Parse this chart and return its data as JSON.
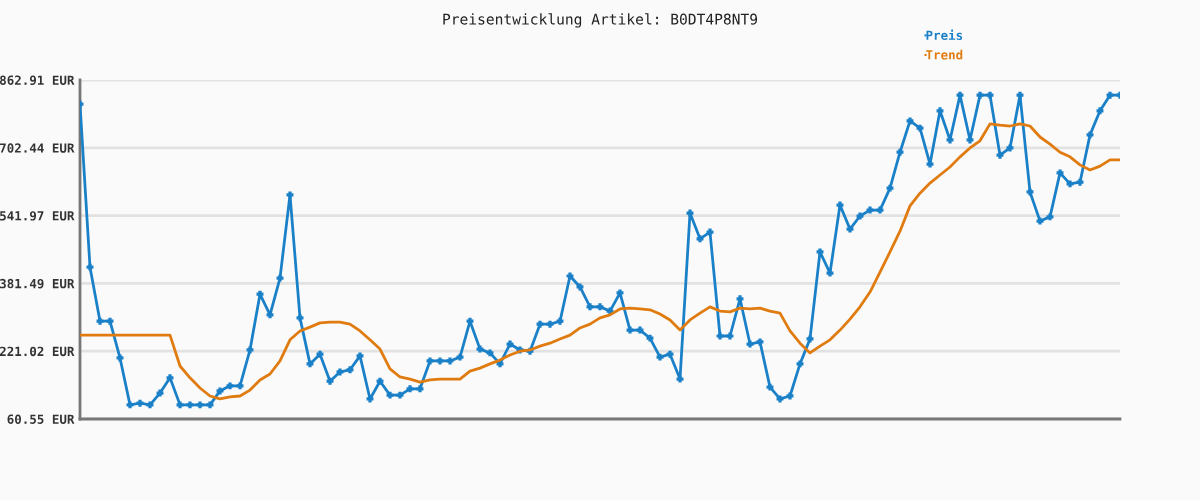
{
  "chart_data": {
    "type": "line",
    "title": "Preisentwicklung Artikel: B0DT4P8NT9",
    "categories": [
      null,
      null,
      null,
      null,
      null,
      null,
      null,
      null,
      null,
      null,
      null,
      null,
      null,
      null,
      null,
      null,
      null,
      null,
      null,
      null,
      null,
      null,
      null,
      null,
      null,
      null,
      null,
      null,
      null,
      null,
      null,
      null,
      null,
      null,
      null,
      null,
      null,
      null,
      null,
      null,
      null,
      null,
      null,
      null,
      null,
      null,
      null,
      null,
      null,
      null,
      null,
      null,
      null,
      null,
      null,
      null,
      null,
      null,
      null,
      null,
      null,
      null,
      null,
      null,
      null,
      null,
      null,
      null,
      null,
      null,
      null,
      null,
      null,
      null,
      null,
      null,
      null,
      null,
      null,
      null,
      null,
      null,
      null,
      null,
      null,
      null,
      null,
      null,
      null,
      null,
      null,
      null,
      null,
      null,
      null,
      null,
      null,
      null,
      null,
      null,
      null,
      null,
      null,
      null,
      null
    ],
    "series": [
      {
        "name": "Preis",
        "color": "#1a80c8",
        "marker": "cross",
        "values": [
          806,
          420,
          292,
          292,
          205,
          94,
          98,
          94,
          122,
          158,
          94,
          94,
          94,
          94,
          127,
          139,
          139,
          224,
          356,
          307,
          394,
          591,
          300,
          191,
          214,
          150,
          172,
          177,
          210,
          108,
          150,
          117,
          117,
          132,
          132,
          198,
          198,
          198,
          207,
          292,
          226,
          217,
          191,
          238,
          224,
          221,
          285,
          285,
          292,
          399,
          373,
          326,
          326,
          316,
          359,
          271,
          271,
          252,
          207,
          214,
          155,
          548,
          487,
          503,
          257,
          257,
          345,
          238,
          243,
          136,
          108,
          115,
          191,
          250,
          456,
          406,
          567,
          510,
          541,
          555,
          555,
          607,
          692,
          766,
          749,
          664,
          790,
          721,
          827,
          721,
          827,
          827,
          685,
          702,
          827,
          598,
          529,
          539,
          643,
          617,
          621,
          733,
          790,
          827,
          827
        ]
      },
      {
        "name": "Trend",
        "color": "#e07b10",
        "marker": "none",
        "values": [
          259,
          259,
          259,
          259,
          259,
          259,
          259,
          259,
          259,
          259,
          186,
          158,
          134,
          115,
          108,
          113,
          115,
          129,
          153,
          167,
          198,
          248,
          269,
          278,
          288,
          290,
          290,
          285,
          269,
          248,
          226,
          179,
          160,
          155,
          148,
          153,
          155,
          155,
          155,
          174,
          181,
          191,
          200,
          212,
          221,
          224,
          233,
          240,
          250,
          259,
          276,
          285,
          300,
          307,
          321,
          323,
          321,
          319,
          309,
          295,
          271,
          295,
          311,
          326,
          316,
          314,
          323,
          321,
          323,
          316,
          311,
          269,
          240,
          217,
          233,
          248,
          271,
          297,
          326,
          361,
          408,
          456,
          505,
          565,
          595,
          619,
          638,
          657,
          681,
          702,
          719,
          759,
          756,
          754,
          759,
          754,
          728,
          711,
          692,
          681,
          662,
          650,
          659,
          674,
          674
        ]
      }
    ],
    "ylim": [
      60.55,
      862.91
    ],
    "yticks": [
      {
        "value": 60.55,
        "label": "60.55 EUR"
      },
      {
        "value": 221.02,
        "label": "221.02 EUR"
      },
      {
        "value": 381.49,
        "label": "381.49 EUR"
      },
      {
        "value": 541.97,
        "label": "541.97 EUR"
      },
      {
        "value": 702.44,
        "label": "702.44 EUR"
      },
      {
        "value": 862.91,
        "label": "862.91 EUR"
      }
    ],
    "grid": "y",
    "legend": "top right",
    "line_style": "solid"
  }
}
